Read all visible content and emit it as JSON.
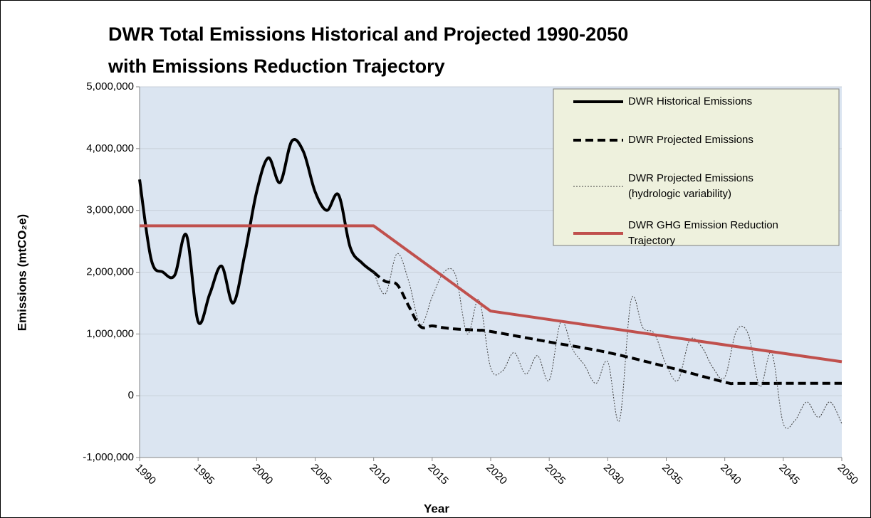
{
  "chart_data": {
    "type": "line",
    "title": [
      "DWR Total Emissions Historical and Projected 1990-2050",
      "with Emissions Reduction Trajectory"
    ],
    "x_label": "Year",
    "y_label": "Emissions (mtCO₂e)",
    "xlim": [
      1990,
      2050
    ],
    "xticks": [
      1990,
      1995,
      2000,
      2005,
      2010,
      2015,
      2020,
      2025,
      2030,
      2035,
      2040,
      2045,
      2050
    ],
    "ylim": [
      -1000000,
      5000000
    ],
    "yticks": [
      {
        "value": -1000000,
        "label": "-1,000,000"
      },
      0,
      {
        "value": 1000000,
        "label": "1,000,000"
      },
      {
        "value": 2000000,
        "label": "2,000,000"
      },
      {
        "value": 3000000,
        "label": "3,000,000"
      },
      {
        "value": 4000000,
        "label": "4,000,000"
      },
      {
        "value": 5000000,
        "label": "5,000,000"
      }
    ],
    "grid": true,
    "legend": "upper right",
    "series": [
      {
        "name": "DWR Historical Emissions",
        "color": "#000000",
        "line_style": "solid",
        "smooth": true,
        "x": [
          1990,
          1991,
          1992,
          1993,
          1994,
          1995,
          1996,
          1997,
          1998,
          1999,
          2000,
          2001,
          2002,
          2003,
          2004,
          2005,
          2006,
          2007,
          2008,
          2009,
          2010
        ],
        "values": [
          3500000,
          2200000,
          2000000,
          1950000,
          2600000,
          1200000,
          1650000,
          2100000,
          1500000,
          2300000,
          3300000,
          3850000,
          3450000,
          4120000,
          3950000,
          3300000,
          3000000,
          3250000,
          2400000,
          2150000,
          2000000
        ]
      },
      {
        "name": "DWR Projected Emissions",
        "color": "#000000",
        "line_style": "dashed",
        "smooth": true,
        "x": [
          2010,
          2011,
          2012,
          2013,
          2014,
          2015,
          2016,
          2017,
          2018,
          2019,
          2020,
          2025,
          2030,
          2035,
          2040,
          2041,
          2045,
          2050
        ],
        "values": [
          2000000,
          1850000,
          1800000,
          1450000,
          1120000,
          1130000,
          1100000,
          1080000,
          1070000,
          1060000,
          1040000,
          870000,
          700000,
          470000,
          220000,
          200000,
          200000,
          200000
        ]
      },
      {
        "name": "DWR Projected Emissions\n(hydrologic variability)",
        "color": "#404040",
        "line_style": "dotted",
        "smooth": true,
        "x": [
          2010,
          2011,
          2012,
          2013,
          2014,
          2015,
          2016,
          2017,
          2018,
          2019,
          2020,
          2021,
          2022,
          2023,
          2024,
          2025,
          2026,
          2027,
          2028,
          2029,
          2030,
          2031,
          2032,
          2033,
          2034,
          2035,
          2036,
          2037,
          2038,
          2039,
          2040,
          2041,
          2042,
          2043,
          2044,
          2045,
          2046,
          2047,
          2048,
          2049,
          2050
        ],
        "values": [
          2000000,
          1650000,
          2300000,
          1850000,
          1150000,
          1600000,
          2000000,
          1950000,
          1000000,
          1550000,
          450000,
          400000,
          700000,
          350000,
          650000,
          250000,
          1200000,
          750000,
          500000,
          200000,
          550000,
          -400000,
          1550000,
          1100000,
          1000000,
          500000,
          250000,
          900000,
          800000,
          450000,
          300000,
          1050000,
          1000000,
          150000,
          700000,
          -450000,
          -400000,
          -100000,
          -350000,
          -100000,
          -450000
        ]
      },
      {
        "name": "DWR GHG Emission Reduction\nTrajectory",
        "color": "#c0504d",
        "line_style": "solid",
        "smooth": false,
        "x": [
          1990,
          2009,
          2010,
          2020,
          2050
        ],
        "values": [
          2750000,
          2750000,
          2750000,
          1370000,
          550000
        ]
      }
    ]
  }
}
